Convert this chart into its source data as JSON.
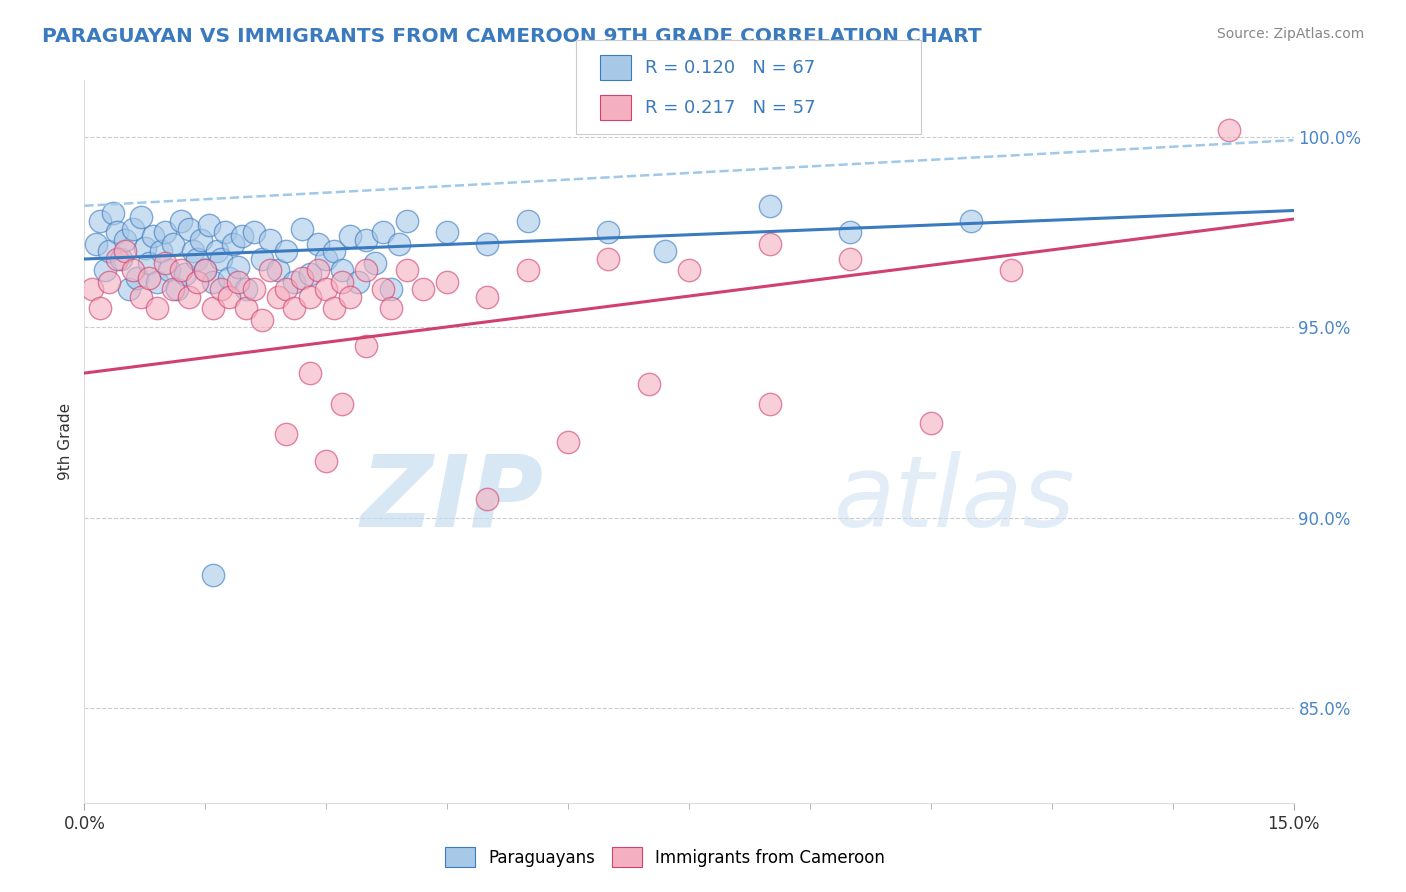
{
  "title": "PARAGUAYAN VS IMMIGRANTS FROM CAMEROON 9TH GRADE CORRELATION CHART",
  "source": "Source: ZipAtlas.com",
  "ylabel": "9th Grade",
  "xlim": [
    0.0,
    15.0
  ],
  "ylim": [
    82.5,
    101.5
  ],
  "yticks": [
    85.0,
    90.0,
    95.0,
    100.0
  ],
  "r_blue": 0.12,
  "n_blue": 67,
  "r_pink": 0.217,
  "n_pink": 57,
  "blue_color": "#a8c8e8",
  "pink_color": "#f4b0c0",
  "trend_blue_color": "#3a7abf",
  "trend_pink_color": "#d04070",
  "dashed_color": "#a0c8e8",
  "legend_blue_label": "Paraguayans",
  "legend_pink_label": "Immigrants from Cameroon",
  "watermark_zip": "ZIP",
  "watermark_atlas": "atlas",
  "blue_scatter_x": [
    0.15,
    0.2,
    0.25,
    0.3,
    0.35,
    0.4,
    0.45,
    0.5,
    0.55,
    0.6,
    0.65,
    0.7,
    0.75,
    0.8,
    0.85,
    0.9,
    0.95,
    1.0,
    1.05,
    1.1,
    1.15,
    1.2,
    1.25,
    1.3,
    1.35,
    1.4,
    1.45,
    1.5,
    1.55,
    1.6,
    1.65,
    1.7,
    1.75,
    1.8,
    1.85,
    1.9,
    1.95,
    2.0,
    2.1,
    2.2,
    2.3,
    2.4,
    2.5,
    2.6,
    2.7,
    2.8,
    2.9,
    3.0,
    3.1,
    3.2,
    3.3,
    3.4,
    3.5,
    3.6,
    3.7,
    3.8,
    3.9,
    4.0,
    4.5,
    5.0,
    5.5,
    6.5,
    7.2,
    8.5,
    9.5,
    11.0,
    1.6
  ],
  "blue_scatter_y": [
    97.2,
    97.8,
    96.5,
    97.0,
    98.0,
    97.5,
    96.8,
    97.3,
    96.0,
    97.6,
    96.3,
    97.9,
    97.1,
    96.7,
    97.4,
    96.2,
    97.0,
    97.5,
    96.5,
    97.2,
    96.0,
    97.8,
    96.4,
    97.6,
    97.0,
    96.8,
    97.3,
    96.5,
    97.7,
    96.2,
    97.0,
    96.8,
    97.5,
    96.3,
    97.2,
    96.6,
    97.4,
    96.0,
    97.5,
    96.8,
    97.3,
    96.5,
    97.0,
    96.2,
    97.6,
    96.4,
    97.2,
    96.8,
    97.0,
    96.5,
    97.4,
    96.2,
    97.3,
    96.7,
    97.5,
    96.0,
    97.2,
    97.8,
    97.5,
    97.2,
    97.8,
    97.5,
    97.0,
    98.2,
    97.5,
    97.8,
    88.5
  ],
  "pink_scatter_x": [
    0.1,
    0.2,
    0.3,
    0.4,
    0.5,
    0.6,
    0.7,
    0.8,
    0.9,
    1.0,
    1.1,
    1.2,
    1.3,
    1.4,
    1.5,
    1.6,
    1.7,
    1.8,
    1.9,
    2.0,
    2.1,
    2.2,
    2.3,
    2.4,
    2.5,
    2.6,
    2.7,
    2.8,
    2.9,
    3.0,
    3.1,
    3.2,
    3.3,
    3.5,
    3.7,
    4.0,
    4.5,
    5.0,
    5.5,
    6.5,
    7.5,
    8.5,
    9.5,
    11.5,
    14.2,
    2.5,
    2.8,
    3.0,
    3.2,
    3.5,
    3.8,
    4.2,
    5.0,
    6.0,
    7.0,
    8.5,
    10.5
  ],
  "pink_scatter_y": [
    96.0,
    95.5,
    96.2,
    96.8,
    97.0,
    96.5,
    95.8,
    96.3,
    95.5,
    96.7,
    96.0,
    96.5,
    95.8,
    96.2,
    96.5,
    95.5,
    96.0,
    95.8,
    96.2,
    95.5,
    96.0,
    95.2,
    96.5,
    95.8,
    96.0,
    95.5,
    96.3,
    95.8,
    96.5,
    96.0,
    95.5,
    96.2,
    95.8,
    96.5,
    96.0,
    96.5,
    96.2,
    95.8,
    96.5,
    96.8,
    96.5,
    97.2,
    96.8,
    96.5,
    100.2,
    92.2,
    93.8,
    91.5,
    93.0,
    94.5,
    95.5,
    96.0,
    90.5,
    92.0,
    93.5,
    93.0,
    92.5
  ],
  "blue_trend_intercept": 96.8,
  "blue_trend_slope": 0.085,
  "pink_trend_intercept": 93.8,
  "pink_trend_slope": 0.27,
  "dashed_trend_intercept": 98.2,
  "dashed_trend_slope": 0.115
}
